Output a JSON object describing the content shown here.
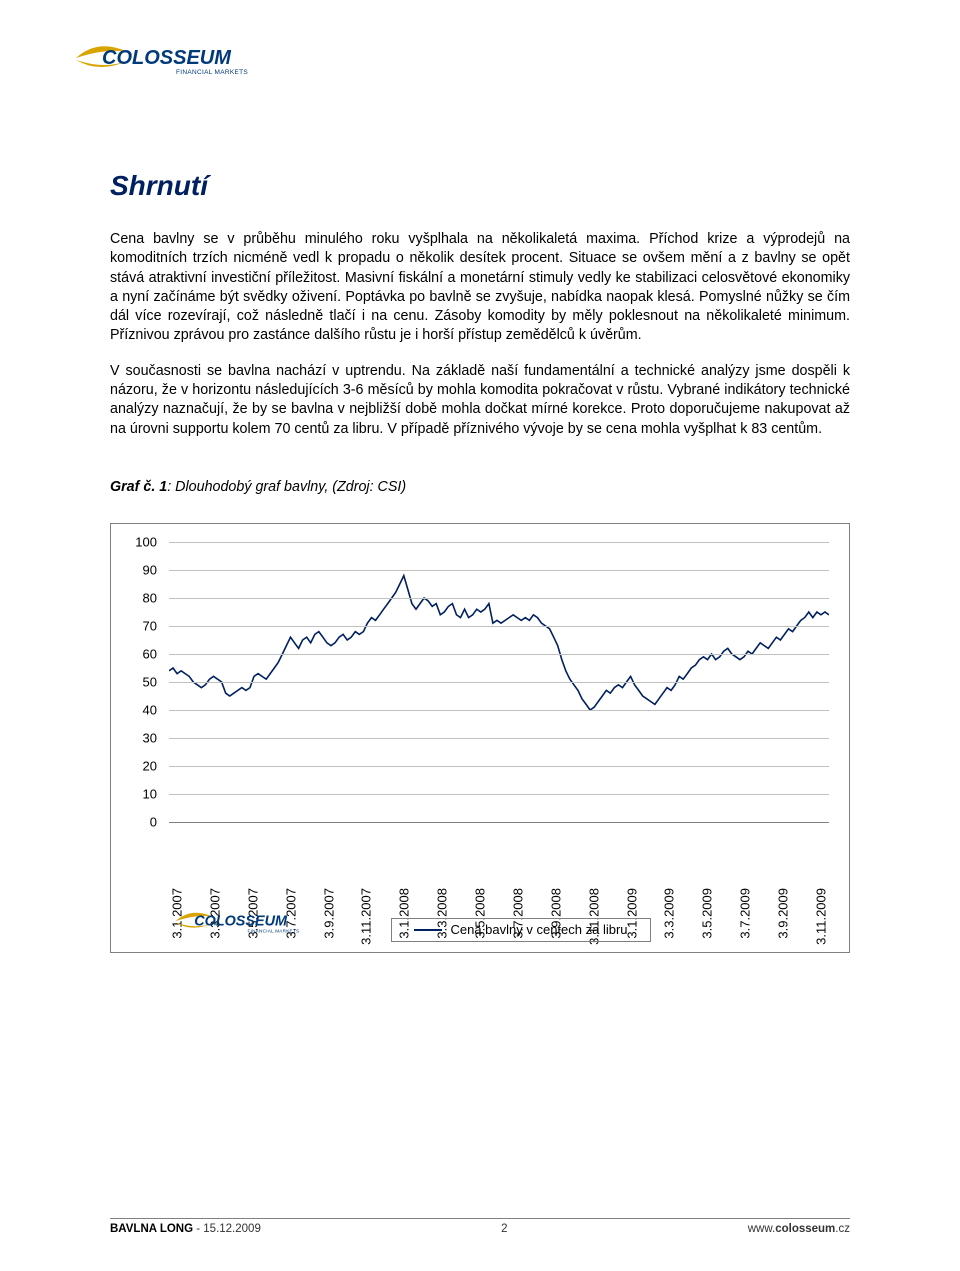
{
  "logo": {
    "brand_upper": "COLOSSEUM",
    "brand_sub": "FINANCIAL MARKETS",
    "swoosh_color": "#d9a400",
    "text_color": "#003a7a"
  },
  "title": "Shrnutí",
  "paragraphs": [
    "Cena bavlny se v průběhu minulého roku vyšplhala na několikaletá maxima. Příchod krize a výprodejů na komoditních trzích nicméně vedl k propadu o několik desítek procent. Situace se ovšem mění a z bavlny se opět stává atraktivní investiční příležitost. Masivní fiskální a monetární stimuly vedly ke stabilizaci celosvětové ekonomiky a nyní začínáme být svědky oživení. Poptávka po bavlně se zvyšuje, nabídka naopak klesá. Pomyslné nůžky se čím dál více rozevírají, což následně tlačí i na cenu. Zásoby komodity by měly poklesnout na několikaleté minimum. Příznivou zprávou pro zastánce dalšího růstu je i horší přístup zemědělců k úvěrům.",
    "V současnosti se bavlna nachází v uptrendu. Na základě naší fundamentální a technické analýzy jsme dospěli k názoru, že v horizontu následujících 3-6 měsíců by mohla komodita pokračovat v růstu. Vybrané indikátory technické analýzy naznačují, že by se bavlna v nejbližší době mohla dočkat mírné korekce. Proto doporučujeme nakupovat až na úrovni supportu kolem 70 centů za libru. V případě příznivého vývoje by se cena mohla vyšplhat k 83 centům."
  ],
  "chart_caption_bold": "Graf č. 1",
  "chart_caption_rest": ": Dlouhodobý graf bavlny, (Zdroj: CSI)",
  "chart": {
    "type": "line",
    "line_color": "#002060",
    "grid_color": "#c0c0c0",
    "border_color": "#808080",
    "background_color": "#ffffff",
    "ylim": [
      0,
      100
    ],
    "ytick_step": 10,
    "y_ticks": [
      0,
      10,
      20,
      30,
      40,
      50,
      60,
      70,
      80,
      90,
      100
    ],
    "x_labels": [
      "3.1.2007",
      "3.3.2007",
      "3.5.2007",
      "3.7.2007",
      "3.9.2007",
      "3.11.2007",
      "3.1.2008",
      "3.3.2008",
      "3.5.2008",
      "3.7.2008",
      "3.9.2008",
      "3.11.2008",
      "3.1.2009",
      "3.3.2009",
      "3.5.2009",
      "3.7.2009",
      "3.9.2009",
      "3.11.2009"
    ],
    "x_count": 18,
    "legend_label": "Cena bavlny v centech za libru",
    "series": [
      54,
      55,
      53,
      54,
      53,
      52,
      50,
      49,
      48,
      49,
      51,
      52,
      51,
      50,
      46,
      45,
      46,
      47,
      48,
      47,
      48,
      52,
      53,
      52,
      51,
      53,
      55,
      57,
      60,
      63,
      66,
      64,
      62,
      65,
      66,
      64,
      67,
      68,
      66,
      64,
      63,
      64,
      66,
      67,
      65,
      66,
      68,
      67,
      68,
      71,
      73,
      72,
      74,
      76,
      78,
      80,
      82,
      85,
      88,
      83,
      78,
      76,
      78,
      80,
      79,
      77,
      78,
      74,
      75,
      77,
      78,
      74,
      73,
      76,
      73,
      74,
      76,
      75,
      76,
      78,
      71,
      72,
      71,
      72,
      73,
      74,
      73,
      72,
      73,
      72,
      74,
      73,
      71,
      70,
      69,
      66,
      63,
      58,
      54,
      51,
      49,
      47,
      44,
      42,
      40,
      41,
      43,
      45,
      47,
      46,
      48,
      49,
      48,
      50,
      52,
      49,
      47,
      45,
      44,
      43,
      42,
      44,
      46,
      48,
      47,
      49,
      52,
      51,
      53,
      55,
      56,
      58,
      59,
      58,
      60,
      58,
      59,
      61,
      62,
      60,
      59,
      58,
      59,
      61,
      60,
      62,
      64,
      63,
      62,
      64,
      66,
      65,
      67,
      69,
      68,
      70,
      72,
      73,
      75,
      73,
      75,
      74,
      75,
      74
    ]
  },
  "footer": {
    "left_bold": "BAVLNA LONG",
    "left_rest": " - 15.12.2009",
    "page_num": "2",
    "right_pre": "www.",
    "right_bold": "colosseum",
    "right_post": ".cz"
  }
}
